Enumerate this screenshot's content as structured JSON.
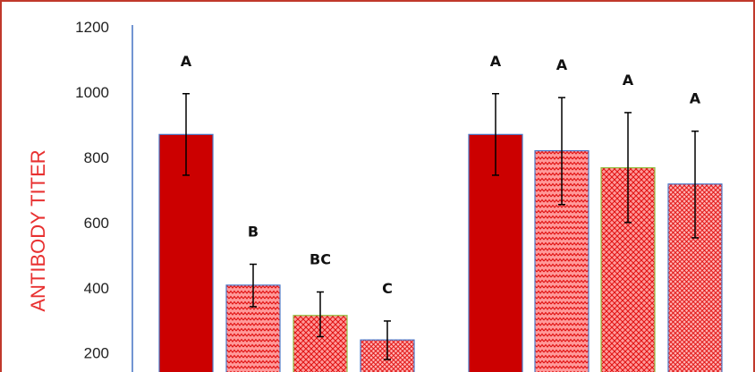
{
  "chart_data": {
    "type": "bar",
    "ylabel": "ANTIBODY TITER",
    "ylim": [
      0,
      1200
    ],
    "y_ticks": [
      200,
      400,
      600,
      800,
      1000,
      1200
    ],
    "grid": false,
    "legend": "none",
    "bars": [
      {
        "value": 870,
        "err_low": 745,
        "err_high": 995,
        "label": "A",
        "pattern": "solid",
        "group": 1
      },
      {
        "value": 408,
        "err_low": 342,
        "err_high": 472,
        "label": "B",
        "pattern": "zigzag",
        "group": 1
      },
      {
        "value": 315,
        "err_low": 250,
        "err_high": 387,
        "label": "BC",
        "pattern": "crosshatch",
        "group": 1
      },
      {
        "value": 240,
        "err_low": 180,
        "err_high": 298,
        "label": "C",
        "pattern": "dots",
        "group": 1
      },
      {
        "value": 870,
        "err_low": 745,
        "err_high": 995,
        "label": "A",
        "pattern": "solid",
        "group": 2
      },
      {
        "value": 820,
        "err_low": 655,
        "err_high": 983,
        "label": "A",
        "pattern": "zigzag",
        "group": 2
      },
      {
        "value": 768,
        "err_low": 600,
        "err_high": 937,
        "label": "A",
        "pattern": "crosshatch",
        "group": 2
      },
      {
        "value": 718,
        "err_low": 553,
        "err_high": 880,
        "label": "A",
        "pattern": "dots",
        "group": 2
      }
    ],
    "colors": {
      "bar_fill": "#cc0000",
      "pattern_bg": "#ff9a9a",
      "pattern_fg": "#e01010",
      "frame": "#c0392b",
      "axis": "#4472c4",
      "ylabel_color": "#e83030",
      "error_bar": "#000000"
    }
  }
}
